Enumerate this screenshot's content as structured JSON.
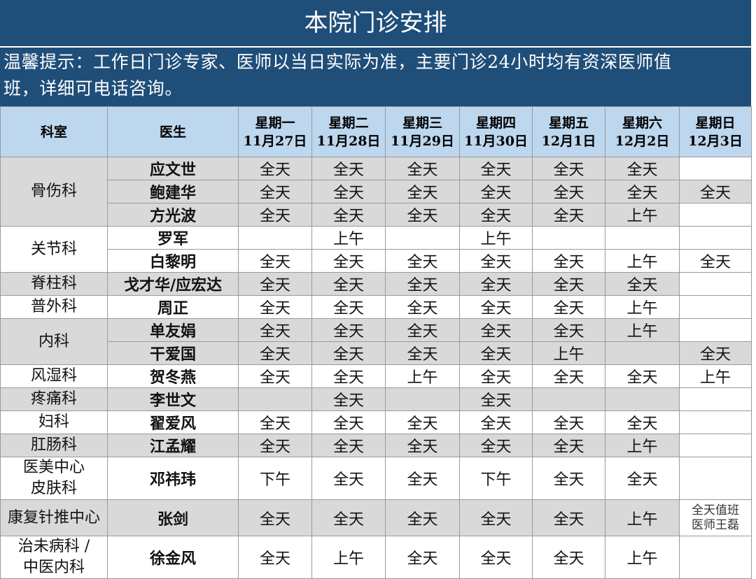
{
  "title": "本院门诊安排",
  "notice_line1": "温馨提示：工作日门诊专家、医师以当日实际为准，主要门诊24小时均有资深医师值",
  "notice_line2": "班，详细可电话咨询。",
  "headers": {
    "dept": "科室",
    "doctor": "医生",
    "days": [
      {
        "weekday": "星期一",
        "date": "11月27日"
      },
      {
        "weekday": "星期二",
        "date": "11月28日"
      },
      {
        "weekday": "星期三",
        "date": "11月29日"
      },
      {
        "weekday": "星期四",
        "date": "11月30日"
      },
      {
        "weekday": "星期五",
        "date": "12月1日"
      },
      {
        "weekday": "星期六",
        "date": "12月2日"
      },
      {
        "weekday": "星期日",
        "date": "12月3日"
      }
    ]
  },
  "departments": [
    {
      "lines": [
        "骨伤科"
      ],
      "shade": "gray",
      "rows": [
        {
          "doctor": "应文世",
          "days": [
            "全天",
            "全天",
            "全天",
            "全天",
            "全天",
            "全天",
            ""
          ]
        },
        {
          "doctor": "鲍建华",
          "days": [
            "全天",
            "全天",
            "全天",
            "全天",
            "全天",
            "全天",
            "全天"
          ]
        },
        {
          "doctor": "方光波",
          "days": [
            "全天",
            "全天",
            "全天",
            "全天",
            "全天",
            "上午",
            ""
          ]
        }
      ]
    },
    {
      "lines": [
        "关节科"
      ],
      "shade": "white",
      "rows": [
        {
          "doctor": "罗军",
          "days": [
            "",
            "上午",
            "",
            "上午",
            "",
            "",
            ""
          ]
        },
        {
          "doctor": "白黎明",
          "days": [
            "全天",
            "全天",
            "全天",
            "全天",
            "全天",
            "上午",
            "全天"
          ]
        }
      ]
    },
    {
      "lines": [
        "脊柱科"
      ],
      "shade": "gray",
      "rows": [
        {
          "doctor": "戈才华/应宏达",
          "days": [
            "全天",
            "全天",
            "全天",
            "全天",
            "全天",
            "全天",
            ""
          ]
        }
      ]
    },
    {
      "lines": [
        "普外科"
      ],
      "shade": "white",
      "rows": [
        {
          "doctor": "周正",
          "days": [
            "全天",
            "全天",
            "全天",
            "全天",
            "全天",
            "上午",
            ""
          ]
        }
      ]
    },
    {
      "lines": [
        "内科"
      ],
      "shade": "gray",
      "rows": [
        {
          "doctor": "单友娟",
          "days": [
            "全天",
            "全天",
            "全天",
            "全天",
            "全天",
            "上午",
            ""
          ]
        },
        {
          "doctor": "干爱国",
          "days": [
            "全天",
            "全天",
            "全天",
            "全天",
            "上午",
            "",
            "全天"
          ]
        }
      ]
    },
    {
      "lines": [
        "风湿科"
      ],
      "shade": "white",
      "rows": [
        {
          "doctor": "贺冬燕",
          "days": [
            "全天",
            "全天",
            "上午",
            "全天",
            "全天",
            "全天",
            "上午"
          ]
        }
      ]
    },
    {
      "lines": [
        "疼痛科"
      ],
      "shade": "gray",
      "rows": [
        {
          "doctor": "李世文",
          "days": [
            "",
            "全天",
            "",
            "全天",
            "",
            "",
            ""
          ]
        }
      ]
    },
    {
      "lines": [
        "妇科"
      ],
      "shade": "white",
      "rows": [
        {
          "doctor": "翟爱风",
          "days": [
            "全天",
            "全天",
            "全天",
            "全天",
            "全天",
            "全天",
            ""
          ]
        }
      ]
    },
    {
      "lines": [
        "肛肠科"
      ],
      "shade": "gray",
      "rows": [
        {
          "doctor": "江孟耀",
          "days": [
            "全天",
            "全天",
            "全天",
            "全天",
            "全天",
            "上午",
            ""
          ]
        }
      ]
    },
    {
      "lines": [
        "医美中心",
        "皮肤科"
      ],
      "shade": "white",
      "rows": [
        {
          "doctor": "邓祎玮",
          "days": [
            "下午",
            "全天",
            "全天",
            "下午",
            "全天",
            "全天",
            ""
          ]
        }
      ]
    },
    {
      "lines": [
        "康复针推中心"
      ],
      "shade": "gray",
      "rows": [
        {
          "doctor": "张剑",
          "days": [
            "全天",
            "全天",
            "全天",
            "全天",
            "全天",
            "上午",
            "全天值班\n医师王磊"
          ]
        }
      ]
    },
    {
      "lines": [
        "治未病科 /",
        "中医内科"
      ],
      "shade": "white",
      "rows": [
        {
          "doctor": "徐金风",
          "days": [
            "全天",
            "上午",
            "全天",
            "全天",
            "全天",
            "上午",
            ""
          ]
        }
      ]
    }
  ]
}
